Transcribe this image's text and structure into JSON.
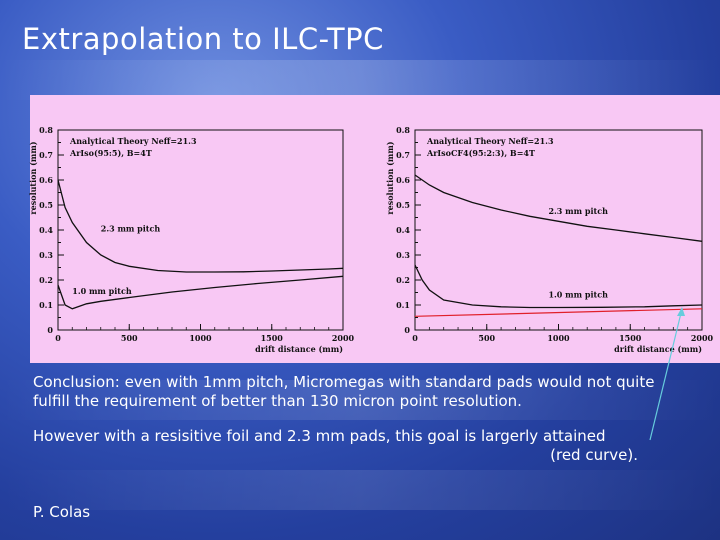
{
  "slide": {
    "title": "Extrapolation to ILC-TPC",
    "conclusion": "Conclusion: even with 1mm pitch, Micromegas with standard pads would not quite fulfill the requirement of better than 130 micron point resolution.",
    "resistive_line1": "However with a resisitive foil and 2.3 mm pads, this goal is largerly attained",
    "resistive_line2": "(red curve).",
    "author": "P. Colas"
  },
  "colors": {
    "plot_background": "#f8c8f4",
    "curve": "#111111",
    "red_curve": "#e0202a",
    "arrow": "#66ccdd"
  },
  "chart_data": [
    {
      "type": "line",
      "legend_title": "Analytical Theory Neff=21.3",
      "legend_subtitle": "ArIso(95:5), B=4T",
      "xlabel": "drift distance (mm)",
      "ylabel": "resolution (mm)",
      "xlim": [
        0,
        2000
      ],
      "ylim": [
        0,
        0.8
      ],
      "xticks": [
        "0",
        "500",
        "1000",
        "1500",
        "2000"
      ],
      "yticks": [
        "0",
        "0.1",
        "0.2",
        "0.3",
        "0.4",
        "0.5",
        "0.6",
        "0.7",
        "0.8"
      ],
      "series": [
        {
          "name": "2.3 mm pitch",
          "x": [
            0,
            50,
            100,
            200,
            300,
            400,
            500,
            700,
            900,
            1100,
            1300,
            1500,
            1700,
            1900,
            2000
          ],
          "y": [
            0.6,
            0.49,
            0.43,
            0.35,
            0.3,
            0.27,
            0.255,
            0.238,
            0.232,
            0.232,
            0.233,
            0.236,
            0.24,
            0.244,
            0.247
          ]
        },
        {
          "name": "1.0 mm pitch",
          "x": [
            0,
            50,
            100,
            200,
            300,
            500,
            800,
            1100,
            1400,
            1700,
            2000
          ],
          "y": [
            0.18,
            0.1,
            0.085,
            0.105,
            0.115,
            0.13,
            0.152,
            0.17,
            0.186,
            0.2,
            0.215
          ]
        }
      ]
    },
    {
      "type": "line",
      "legend_title": "Analytical Theory Neff=21.3",
      "legend_subtitle": "ArIsoCF4(95:2:3), B=4T",
      "xlabel": "drift distance (mm)",
      "ylabel": "resolution (mm)",
      "xlim": [
        0,
        2000
      ],
      "ylim": [
        0,
        0.8
      ],
      "xticks": [
        "0",
        "500",
        "1000",
        "1500",
        "2000"
      ],
      "yticks": [
        "0",
        "0.1",
        "0.2",
        "0.3",
        "0.4",
        "0.5",
        "0.6",
        "0.7",
        "0.8"
      ],
      "series": [
        {
          "name": "2.3 mm pitch",
          "x": [
            0,
            100,
            200,
            400,
            600,
            800,
            1000,
            1200,
            1400,
            1600,
            1800,
            2000
          ],
          "y": [
            0.62,
            0.58,
            0.55,
            0.51,
            0.48,
            0.455,
            0.435,
            0.415,
            0.4,
            0.385,
            0.37,
            0.355
          ]
        },
        {
          "name": "1.0 mm pitch",
          "x": [
            0,
            50,
            100,
            200,
            400,
            600,
            800,
            1000,
            1300,
            1600,
            1800,
            2000
          ],
          "y": [
            0.26,
            0.2,
            0.16,
            0.12,
            0.1,
            0.093,
            0.09,
            0.09,
            0.091,
            0.093,
            0.097,
            0.1
          ]
        },
        {
          "name": "red curve",
          "x": [
            0,
            2000
          ],
          "y": [
            0.055,
            0.085
          ]
        }
      ]
    }
  ]
}
